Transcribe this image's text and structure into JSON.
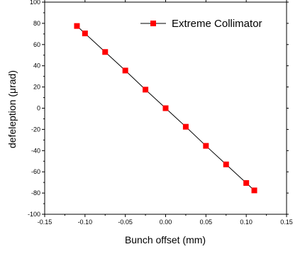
{
  "chart_data": {
    "type": "scatter",
    "xlabel": "Bunch offset (mm)",
    "ylabel": "defeleption (μrad)",
    "xlim": [
      -0.15,
      0.15
    ],
    "ylim": [
      -100,
      100
    ],
    "x_ticks": [
      -0.15,
      -0.1,
      -0.05,
      0.0,
      0.05,
      0.1,
      0.15
    ],
    "x_tick_labels": [
      "-0.15",
      "-0.10",
      "-0.05",
      "0.00",
      "0.05",
      "0.10",
      "0.15"
    ],
    "y_ticks": [
      -100,
      -80,
      -60,
      -40,
      -20,
      0,
      20,
      40,
      60,
      80,
      100
    ],
    "y_tick_labels": [
      "-100",
      "-80",
      "-60",
      "-40",
      "-20",
      "0",
      "20",
      "40",
      "60",
      "80",
      "100"
    ],
    "grid": false,
    "legend_position": "top-right",
    "series": [
      {
        "name": "Extreme Collimator",
        "color": "#ff0000",
        "line_color": "#000000",
        "marker": "square",
        "x": [
          -0.11,
          -0.1,
          -0.075,
          -0.05,
          -0.025,
          0.0,
          0.025,
          0.05,
          0.075,
          0.1,
          0.11
        ],
        "y": [
          77.5,
          70.5,
          53,
          35.5,
          17.5,
          0,
          -17.5,
          -35.5,
          -53,
          -70.5,
          -77.5
        ]
      }
    ]
  }
}
